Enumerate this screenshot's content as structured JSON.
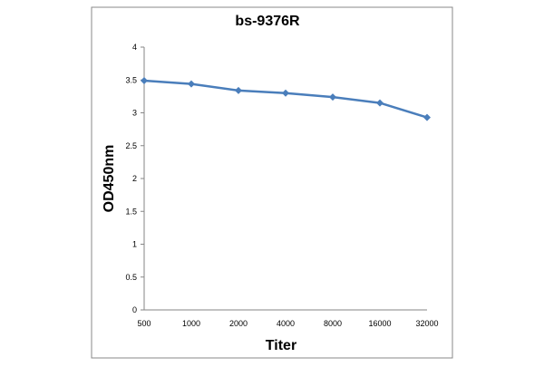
{
  "chart_data": {
    "type": "line",
    "title": "bs-9376R",
    "xlabel": "Titer",
    "ylabel": "OD450nm",
    "categories": [
      "500",
      "1000",
      "2000",
      "4000",
      "8000",
      "16000",
      "32000"
    ],
    "series": [
      {
        "name": "bs-9376R",
        "values": [
          3.49,
          3.44,
          3.34,
          3.3,
          3.24,
          3.15,
          2.93
        ],
        "color": "#4a7ebb"
      }
    ],
    "yticks": [
      "0",
      "0.5",
      "1",
      "1.5",
      "2",
      "2.5",
      "3",
      "3.5",
      "4"
    ],
    "ylim": [
      0,
      4
    ],
    "grid": false,
    "legend": false
  },
  "colors": {
    "border": "#888888",
    "axis": "#868686",
    "line": "#4a7ebb"
  }
}
